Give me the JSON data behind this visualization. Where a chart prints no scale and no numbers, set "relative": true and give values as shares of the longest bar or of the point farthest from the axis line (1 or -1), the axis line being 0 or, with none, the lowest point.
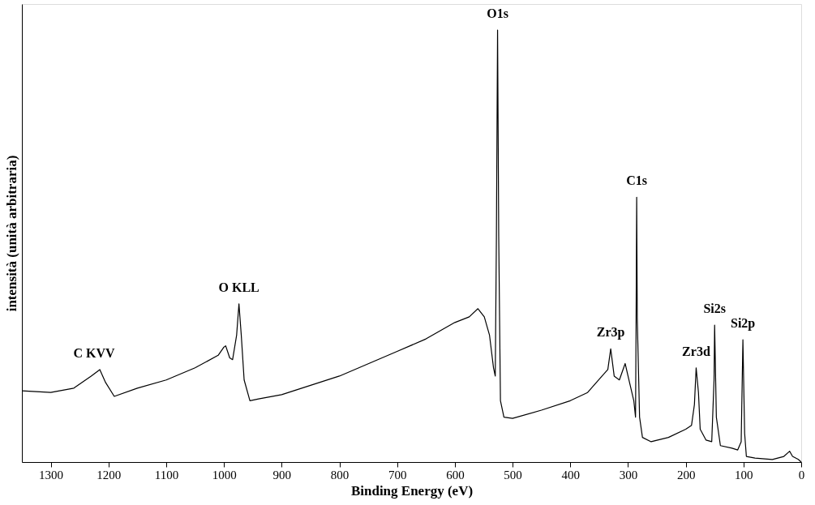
{
  "chart_data": {
    "type": "line",
    "relative": true,
    "xlabel": "Binding Energy (eV)",
    "ylabel": "intensità (unità arbitraria)",
    "xlim": [
      1350,
      0
    ],
    "xticks": [
      1300,
      1200,
      1100,
      1000,
      900,
      800,
      700,
      600,
      500,
      400,
      300,
      200,
      100,
      0
    ],
    "grid": false,
    "marker": "none",
    "line_style": "solid",
    "series": [
      {
        "color": "#000000",
        "x": [
          1350,
          1300,
          1260,
          1230,
          1215,
          1205,
          1190,
          1150,
          1100,
          1050,
          1010,
          1000,
          997,
          990,
          985,
          978,
          974,
          970,
          965,
          955,
          940,
          900,
          800,
          700,
          650,
          600,
          575,
          560,
          549,
          540,
          533,
          530,
          528,
          526,
          524,
          521,
          515,
          500,
          450,
          400,
          370,
          345,
          335,
          330,
          324,
          315,
          305,
          300,
          290,
          287,
          286,
          285,
          284,
          280,
          275,
          260,
          230,
          200,
          190,
          185,
          182,
          178,
          175,
          165,
          155,
          151,
          150,
          147,
          140,
          120,
          110,
          104,
          101,
          98,
          95,
          80,
          50,
          30,
          20,
          15,
          5,
          0
        ],
        "values": [
          0.165,
          0.161,
          0.171,
          0.199,
          0.214,
          0.184,
          0.152,
          0.171,
          0.19,
          0.218,
          0.247,
          0.266,
          0.269,
          0.241,
          0.237,
          0.294,
          0.366,
          0.294,
          0.19,
          0.142,
          0.146,
          0.156,
          0.199,
          0.256,
          0.285,
          0.323,
          0.336,
          0.355,
          0.336,
          0.294,
          0.218,
          0.199,
          0.522,
          1.0,
          0.522,
          0.142,
          0.104,
          0.101,
          0.12,
          0.142,
          0.161,
          0.199,
          0.214,
          0.262,
          0.199,
          0.19,
          0.228,
          0.199,
          0.142,
          0.104,
          0.332,
          0.613,
          0.332,
          0.104,
          0.057,
          0.047,
          0.057,
          0.076,
          0.085,
          0.133,
          0.218,
          0.161,
          0.076,
          0.051,
          0.047,
          0.19,
          0.317,
          0.104,
          0.038,
          0.032,
          0.028,
          0.047,
          0.283,
          0.066,
          0.013,
          0.009,
          0.006,
          0.013,
          0.025,
          0.013,
          0.006,
          0.0
        ]
      }
    ],
    "annotations": [
      {
        "text": "O1s",
        "x": 526,
        "y": 1.0
      },
      {
        "text": "C1s",
        "x": 285,
        "y": 0.613
      },
      {
        "text": "Si2s",
        "x": 150,
        "y": 0.317
      },
      {
        "text": "Si2p",
        "x": 101,
        "y": 0.283
      },
      {
        "text": "Zr3d",
        "x": 182,
        "y": 0.218
      },
      {
        "text": "Zr3p",
        "x": 330,
        "y": 0.262
      },
      {
        "text": "O KLL",
        "x": 974,
        "y": 0.366
      },
      {
        "text": "C KVV",
        "x": 1225,
        "y": 0.214
      }
    ]
  }
}
